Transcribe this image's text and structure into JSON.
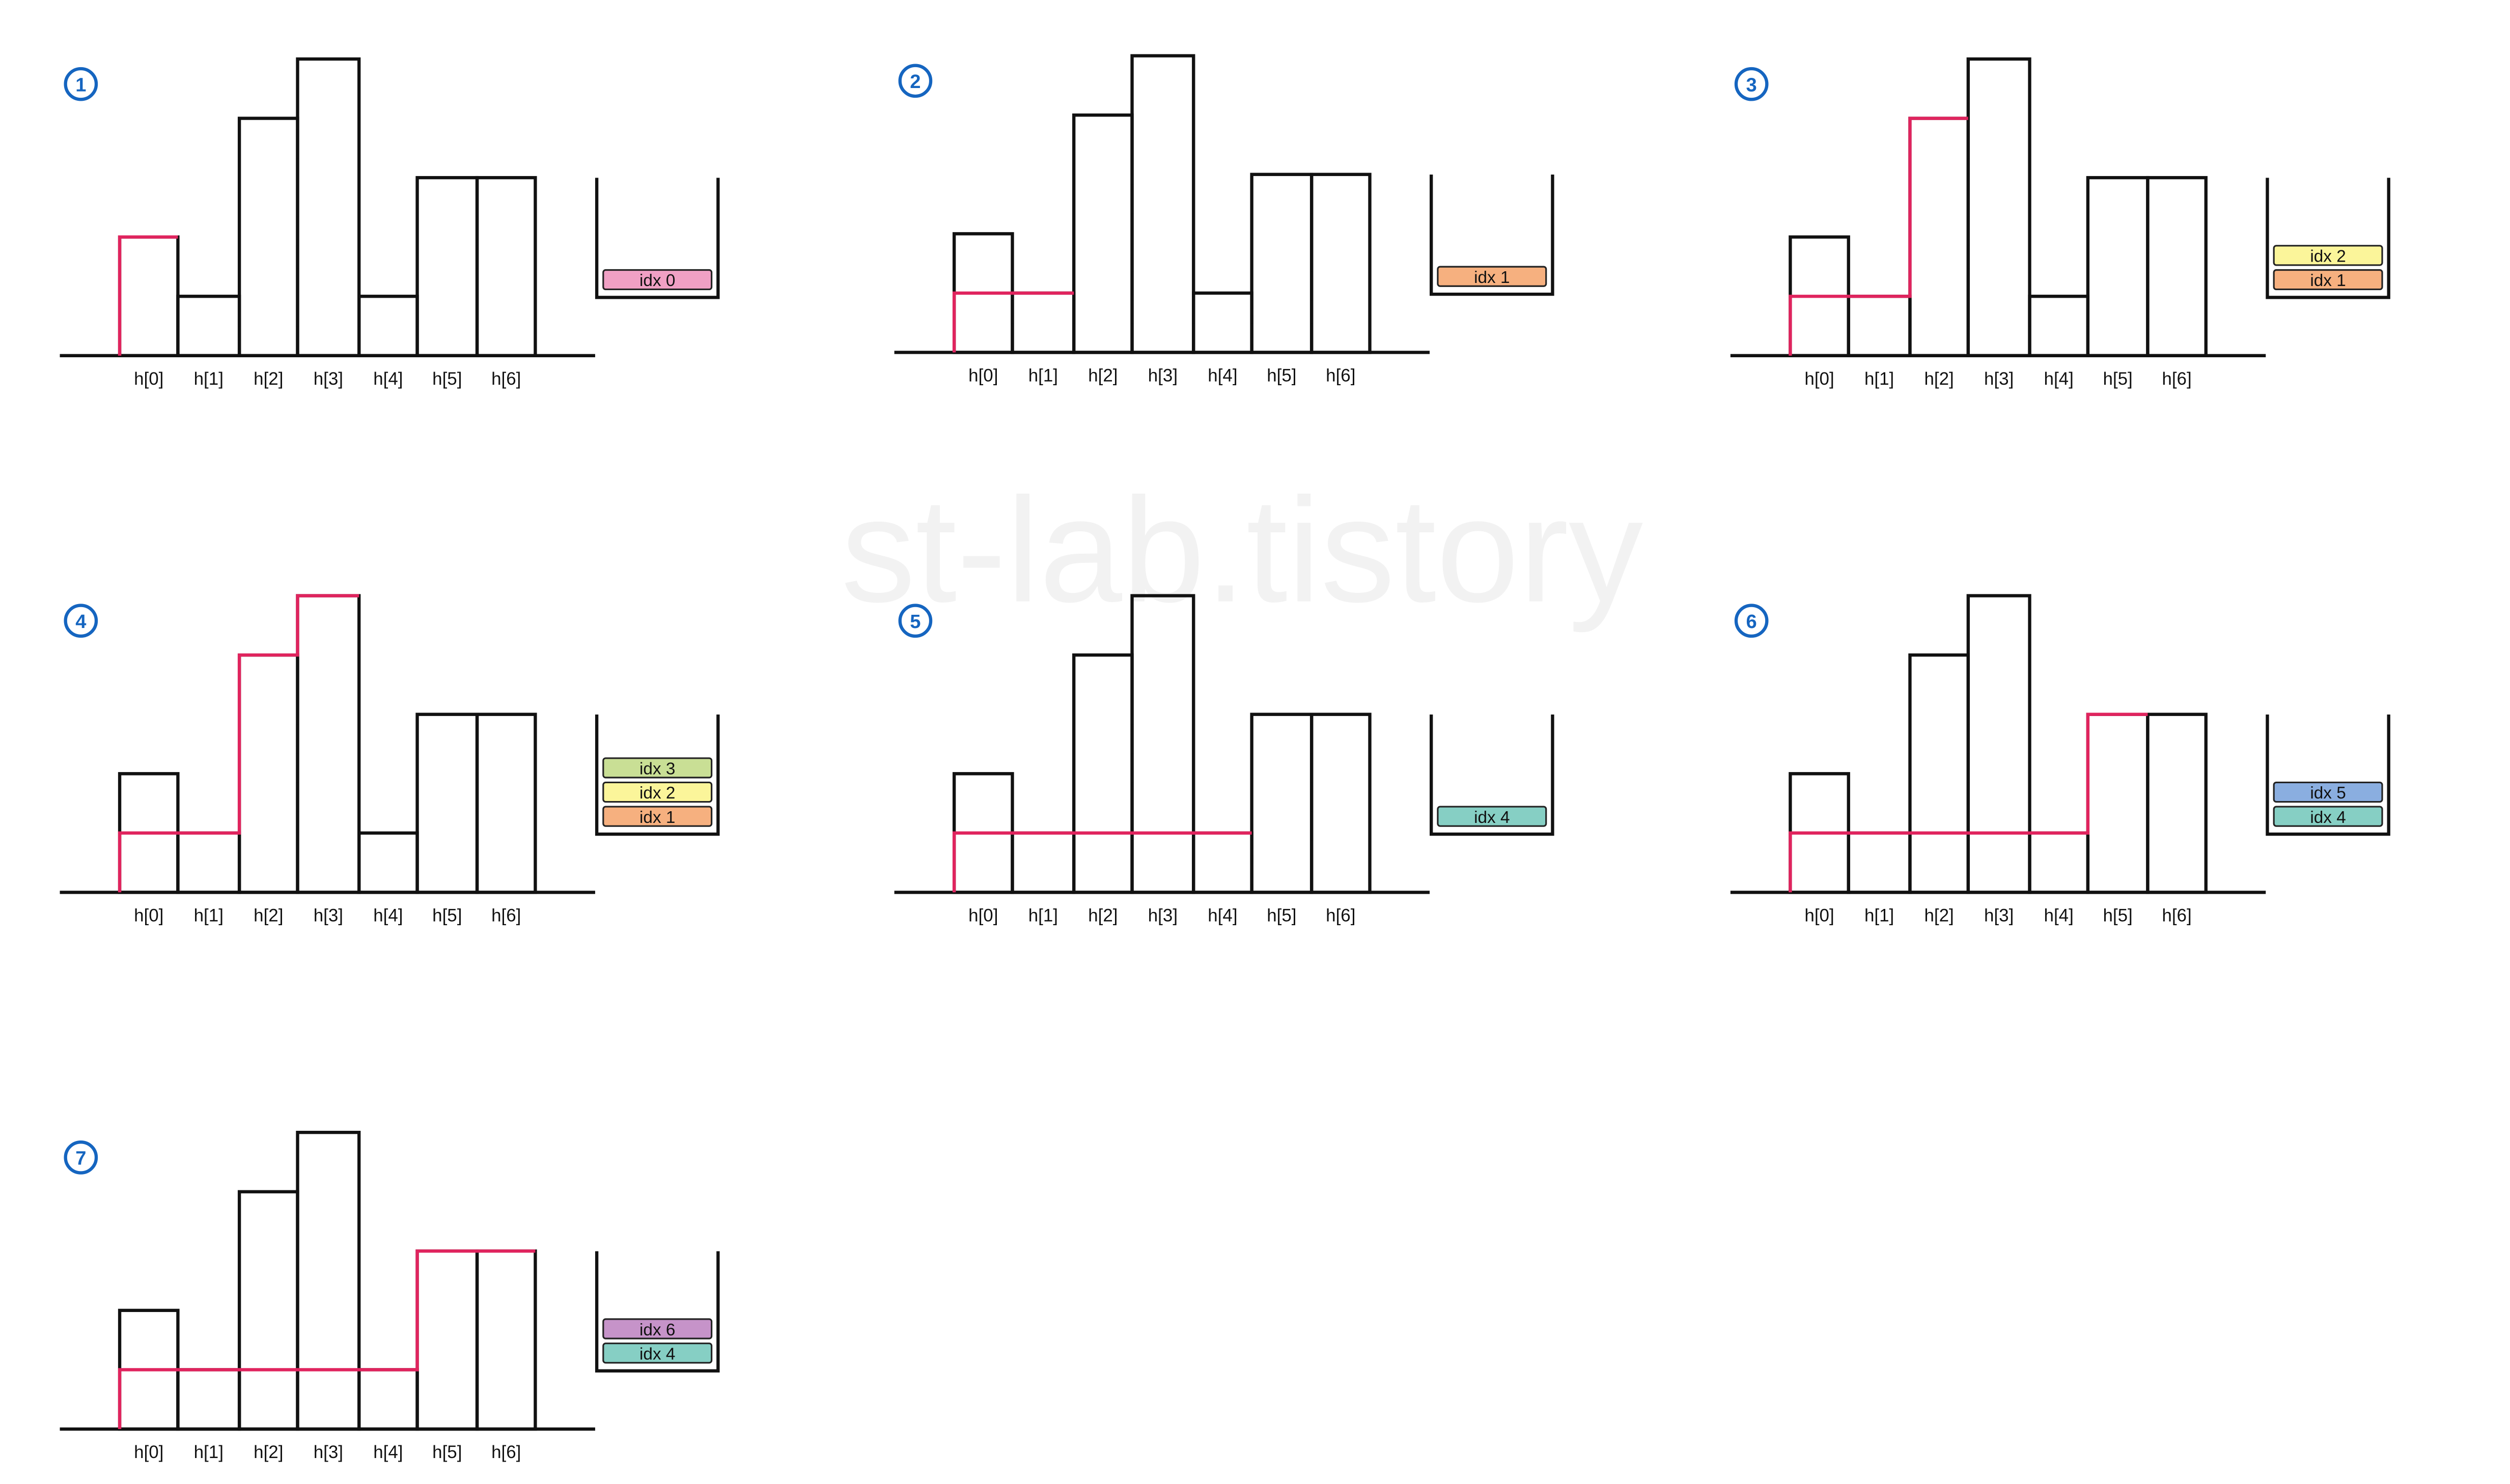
{
  "watermark": "st-lab.tistory",
  "labels": [
    "h[0]",
    "h[1]",
    "h[2]",
    "h[3]",
    "h[4]",
    "h[5]",
    "h[6]"
  ],
  "heights": [
    2,
    1,
    4,
    5,
    1,
    3,
    3
  ],
  "colors": {
    "outline": "#111111",
    "highlight": "#e0245e",
    "badge": "#1565c0",
    "idx0": "#f0a0c4",
    "idx1": "#f6b07f",
    "idx2": "#fbf59a",
    "idx3": "#c9df95",
    "idx4": "#86cfc4",
    "idx5": "#8aaee0",
    "idx6": "#c693c9"
  },
  "panels": [
    {
      "number": "1",
      "path": [
        0,
        2
      ],
      "stack": [
        {
          "text": "idx 0",
          "color": "idx0"
        }
      ]
    },
    {
      "number": "2",
      "path": [
        0,
        1,
        1,
        1
      ],
      "stack": [
        {
          "text": "idx 1",
          "color": "idx1"
        }
      ]
    },
    {
      "number": "3",
      "path": [
        0,
        1,
        1,
        1,
        2,
        4
      ],
      "stack": [
        {
          "text": "idx 2",
          "color": "idx2"
        },
        {
          "text": "idx 1",
          "color": "idx1"
        }
      ]
    },
    {
      "number": "4",
      "path": [
        0,
        1,
        1,
        1,
        2,
        4,
        3,
        5
      ],
      "stack": [
        {
          "text": "idx 3",
          "color": "idx3"
        },
        {
          "text": "idx 2",
          "color": "idx2"
        },
        {
          "text": "idx 1",
          "color": "idx1"
        }
      ]
    },
    {
      "number": "5",
      "path": [
        0,
        1,
        1,
        1,
        2,
        1,
        3,
        1,
        4,
        1
      ],
      "stack": [
        {
          "text": "idx 4",
          "color": "idx4"
        }
      ]
    },
    {
      "number": "6",
      "path": [
        0,
        1,
        1,
        1,
        2,
        1,
        3,
        1,
        4,
        1,
        5,
        3
      ],
      "stack": [
        {
          "text": "idx 5",
          "color": "idx5"
        },
        {
          "text": "idx 4",
          "color": "idx4"
        }
      ]
    },
    {
      "number": "7",
      "path": [
        0,
        1,
        1,
        1,
        2,
        1,
        3,
        1,
        4,
        1,
        5,
        3,
        6,
        3
      ],
      "stack": [
        {
          "text": "idx 6",
          "color": "idx6"
        },
        {
          "text": "idx 4",
          "color": "idx4"
        }
      ]
    }
  ]
}
